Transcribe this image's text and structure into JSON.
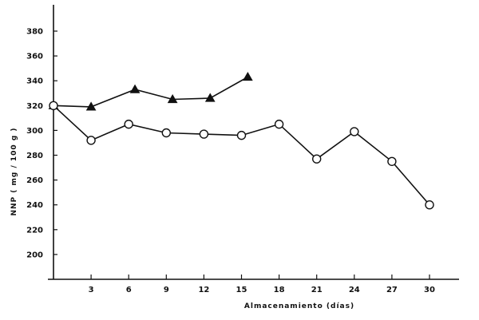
{
  "chart_data": {
    "type": "line",
    "xlabel": "Almacenamiento (días)",
    "ylabel": "NNP ( mg / 100 g )",
    "xlim": [
      0,
      34
    ],
    "ylim": [
      180,
      400
    ],
    "x_ticks": [
      3,
      6,
      9,
      12,
      15,
      18,
      21,
      24,
      27,
      30
    ],
    "y_ticks": [
      200,
      220,
      240,
      260,
      280,
      300,
      320,
      340,
      360,
      380
    ],
    "grid": false,
    "series": [
      {
        "marker": "triangle-filled",
        "x": [
          0,
          3,
          6.5,
          9.5,
          12.5,
          15.5
        ],
        "y": [
          320,
          319,
          333,
          325,
          326,
          343
        ]
      },
      {
        "marker": "circle-open",
        "x": [
          0,
          3,
          6,
          9,
          12,
          15,
          18,
          21,
          24,
          27,
          30
        ],
        "y": [
          320,
          292,
          305,
          298,
          297,
          296,
          305,
          277,
          299,
          275,
          240
        ]
      }
    ]
  }
}
